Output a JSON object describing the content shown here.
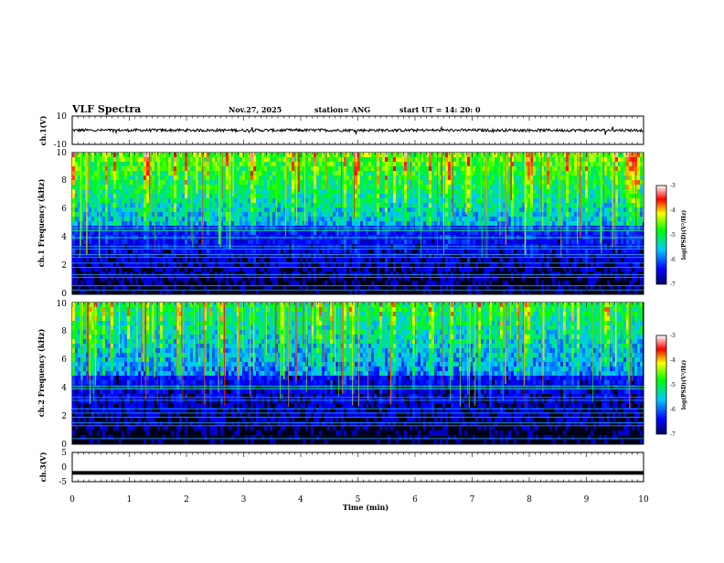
{
  "header": {
    "title": "VLF Spectra",
    "date": "Nov.27, 2025",
    "station": "station= ANG",
    "start_ut": "start  UT =   14: 20: 0"
  },
  "chart_data": [
    {
      "id": "ch1_waveform",
      "type": "line",
      "ylabel": "ch.1(V)",
      "ylim": [
        -10,
        10
      ],
      "yticks": [
        "10",
        "-10"
      ],
      "baseline": 0,
      "description_values": {
        "mean": 0,
        "amplitude_approx": 1
      }
    },
    {
      "id": "ch1_spectrogram",
      "type": "heatmap",
      "ylabel": "ch.1 Frequency (kHz)",
      "ylim": [
        0,
        10
      ],
      "yticks": [
        "0",
        "2",
        "4",
        "6",
        "8",
        "10"
      ],
      "colorbar": {
        "label": "log(PSD)(V²/Hz)",
        "range": [
          -7,
          -3
        ],
        "ticks": [
          "-3",
          "-4",
          "-5",
          "-6",
          "-7"
        ]
      }
    },
    {
      "id": "ch2_spectrogram",
      "type": "heatmap",
      "ylabel": "ch.2 Frequency (kHz)",
      "ylim": [
        0,
        10
      ],
      "yticks": [
        "0",
        "2",
        "4",
        "6",
        "8",
        "10"
      ],
      "colorbar": {
        "label": "log(PSD)(V²/Hz)",
        "range": [
          -7,
          -3
        ],
        "ticks": [
          "-3",
          "-4",
          "-5",
          "-6",
          "-7"
        ]
      }
    },
    {
      "id": "ch3_waveform",
      "type": "line",
      "ylabel": "ch.3(V)",
      "ylim": [
        -5,
        5
      ],
      "yticks": [
        "5",
        "0",
        "-5"
      ],
      "baseline": -2
    },
    {
      "id": "time_axis",
      "type": "axis",
      "xlabel": "Time (min)",
      "xlim": [
        0,
        10
      ],
      "xticks": [
        "0",
        "1",
        "2",
        "3",
        "4",
        "5",
        "6",
        "7",
        "8",
        "9",
        "10"
      ]
    }
  ]
}
